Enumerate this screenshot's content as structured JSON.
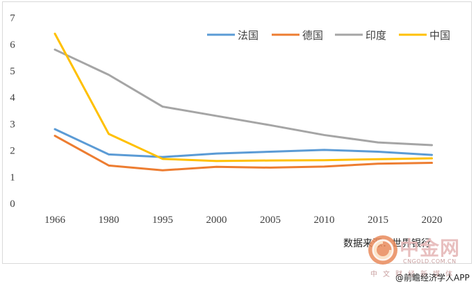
{
  "chart_data": {
    "type": "line",
    "title": "",
    "xlabel": "",
    "ylabel": "",
    "categories": [
      "1966",
      "1980",
      "1995",
      "2000",
      "2005",
      "2010",
      "2015",
      "2020"
    ],
    "ylim": [
      0,
      7
    ],
    "yticks": [
      "0",
      "1",
      "2",
      "3",
      "4",
      "5",
      "6",
      "7"
    ],
    "grid": false,
    "legend_position": "top-right",
    "series": [
      {
        "name": "法国",
        "color": "#5b9bd5",
        "values": [
          2.8,
          1.85,
          1.75,
          1.88,
          1.95,
          2.02,
          1.95,
          1.83
        ]
      },
      {
        "name": "德国",
        "color": "#ed7d31",
        "values": [
          2.55,
          1.43,
          1.25,
          1.38,
          1.35,
          1.39,
          1.5,
          1.53
        ]
      },
      {
        "name": "印度",
        "color": "#a5a5a5",
        "values": [
          5.8,
          4.85,
          3.65,
          3.3,
          2.95,
          2.58,
          2.3,
          2.2
        ]
      },
      {
        "name": "中国",
        "color": "#ffc000",
        "values": [
          6.4,
          2.62,
          1.68,
          1.6,
          1.62,
          1.63,
          1.67,
          1.7
        ]
      }
    ]
  },
  "source_text": "数据来源：世界银行",
  "watermark": {
    "logo_icon": "gold-coin-icon",
    "title": "中金网",
    "url": "CNGOLD.COM.CN",
    "subtitle": "中文财经新媒体"
  },
  "credit": "@前瞻经济学人APP"
}
